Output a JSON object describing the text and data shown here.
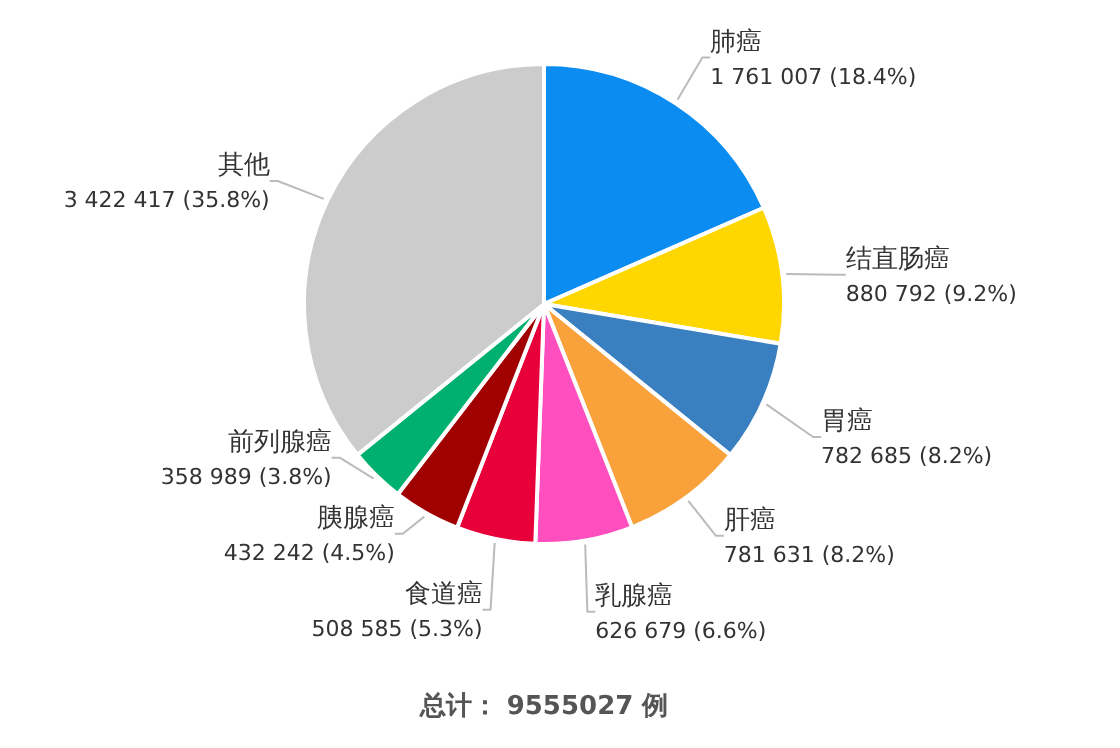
{
  "chart_data": {
    "type": "pie",
    "categories": [
      "肺癌",
      "结直肠癌",
      "胃癌",
      "肝癌",
      "乳腺癌",
      "食道癌",
      "胰腺癌",
      "前列腺癌",
      "其他"
    ],
    "values": [
      1761007,
      880792,
      782685,
      781631,
      626679,
      508585,
      432242,
      358989,
      3422417
    ],
    "value_labels": [
      "1 761 007 (18.4%)",
      "880 792 (9.2%)",
      "782 685 (8.2%)",
      "781 631 (8.2%)",
      "626 679 (6.6%)",
      "508 585 (5.3%)",
      "432 242 (4.5%)",
      "358 989 (3.8%)",
      "3 422 417 (35.8%)"
    ],
    "colors": [
      "#0a8cf0",
      "#ffd700",
      "#3a7fc0",
      "#f9a23c",
      "#ff4fbf",
      "#e8003a",
      "#a00000",
      "#00b070",
      "#cccccc"
    ],
    "annotations": [
      "总计： 9555027 例"
    ]
  }
}
